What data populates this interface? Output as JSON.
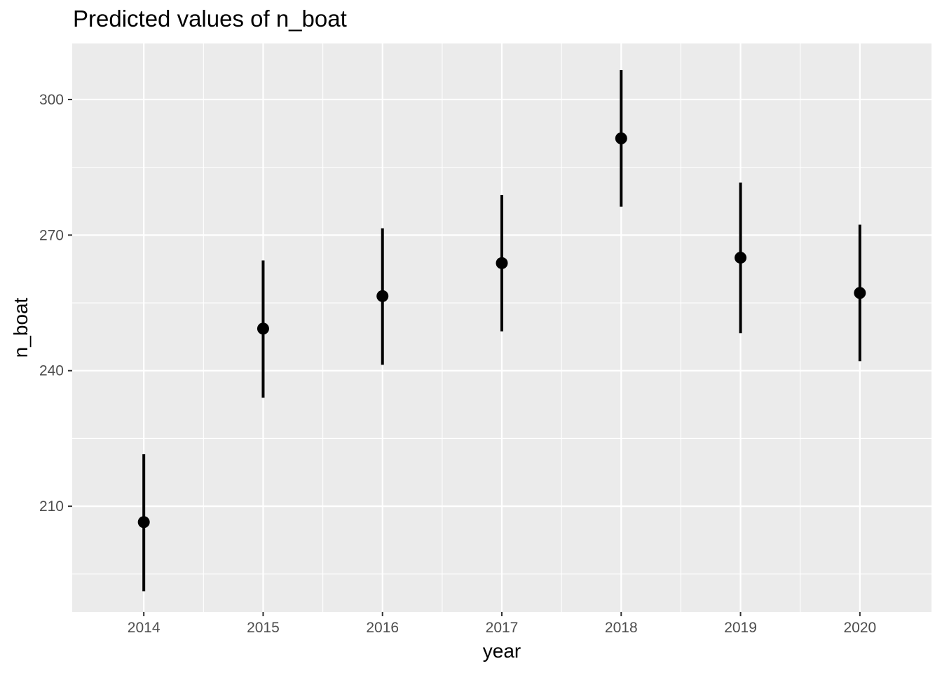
{
  "chart_data": {
    "type": "scatter",
    "title": "Predicted values of n_boat",
    "xlabel": "year",
    "ylabel": "n_boat",
    "categories": [
      "2014",
      "2015",
      "2016",
      "2017",
      "2018",
      "2019",
      "2020"
    ],
    "yticks": [
      210,
      240,
      270,
      300
    ],
    "ylim": [
      186.6,
      312.4
    ],
    "grid": true,
    "legend": "none",
    "series": [
      {
        "values": [
          206.5,
          249.3,
          256.5,
          263.8,
          291.4,
          265.0,
          257.2
        ],
        "lower": [
          191.2,
          234.0,
          241.3,
          248.7,
          276.3,
          248.3,
          242.1
        ],
        "upper": [
          221.5,
          264.4,
          271.5,
          278.9,
          306.5,
          281.6,
          272.3
        ]
      }
    ],
    "colors": {
      "panel": "#ebebeb",
      "grid": "#ffffff",
      "mark": "#000000",
      "tick": "#4d4d4d"
    }
  }
}
